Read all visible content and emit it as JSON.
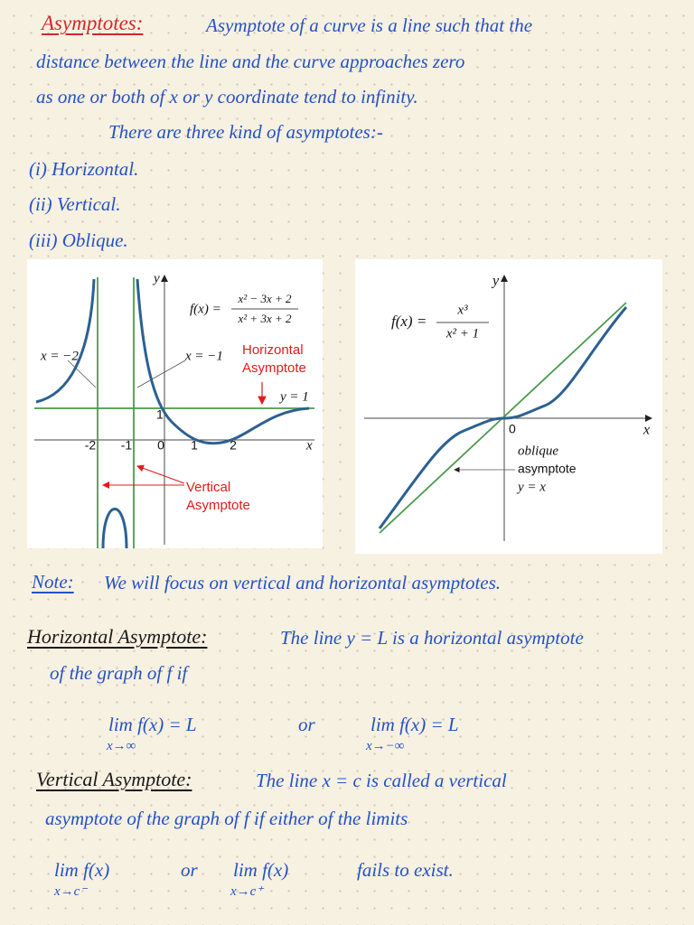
{
  "heading": "Asymptotes:",
  "intro": [
    "Asymptote of a curve is a line such that the",
    "distance between the line and the curve approaches zero",
    "as one or both of x or y coordinate tend to infinity."
  ],
  "kinds_intro": "There are three kind of asymptotes:-",
  "kinds": [
    "(i) Horizontal.",
    "(ii) Vertical.",
    "(iii) Oblique."
  ],
  "figure_1": {
    "y_label": "y",
    "x_label": "x",
    "function": {
      "lhs": "f(x) =",
      "numerator": "x² − 3x + 2",
      "denominator": "x² + 3x + 2"
    },
    "left_asymptote": "x = −2",
    "right_asymptote": "x = −1",
    "horizontal_label": [
      "Horizontal",
      "Asymptote"
    ],
    "horizontal_line": "y = 1",
    "vertical_label": [
      "Vertical",
      "Asymptote"
    ],
    "y_tick": "1",
    "x_ticks": [
      "-2",
      "-1",
      "0",
      "1",
      "2"
    ]
  },
  "figure_2": {
    "y_label": "y",
    "x_label": "x",
    "origin": "0",
    "function": {
      "lhs": "f(x) =",
      "numerator": "x³",
      "denominator": "x² + 1"
    },
    "annotation": [
      "oblique",
      "asymptote",
      "y = x"
    ]
  },
  "note": {
    "label": "Note:",
    "text": "We will focus on vertical and horizontal asymptotes."
  },
  "horizontal": {
    "label": "Horizontal Asymptote:",
    "lines": [
      "The line y = L is a horizontal asymptote",
      "of the graph of f if"
    ],
    "limit_1": {
      "expr": "lim f(x) = L",
      "sub": "x→∞"
    },
    "or": "or",
    "limit_2": {
      "expr": "lim f(x) = L",
      "sub": "x→−∞"
    }
  },
  "vertical": {
    "label": "Vertical Asymptote:",
    "lines": [
      "The line x = c is called a vertical",
      "asymptote of the graph of f if either of the limits"
    ],
    "limit_1": {
      "expr": "lim f(x)",
      "sub": "x→c⁻"
    },
    "or": "or",
    "limit_2": {
      "expr": "lim f(x)",
      "sub": "x→c⁺"
    },
    "end": "fails to exist."
  }
}
